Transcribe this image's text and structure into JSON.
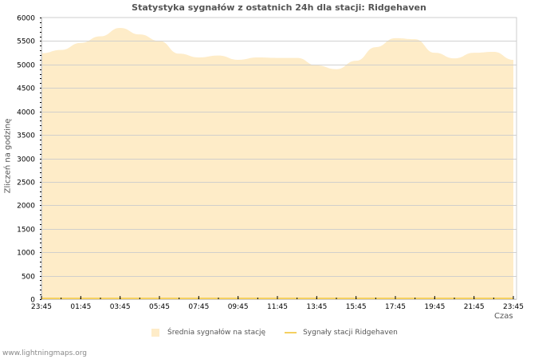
{
  "header": {
    "title": "Statystyka sygnałów z ostatnich 24h dla stacji: Ridgehaven"
  },
  "axes": {
    "ylabel": "Zliczeń na godzinę",
    "xlabel": "Czas"
  },
  "legend": {
    "area_label": "Średnia sygnałów na stację",
    "line_label": "Sygnały stacji Ridgehaven"
  },
  "footer": {
    "text": "www.lightningmaps.org"
  },
  "colors": {
    "area": "#feecc8",
    "line": "#f5d060",
    "grid": "#cccccc"
  },
  "chart_data": {
    "type": "area",
    "title": "Statystyka sygnałów z ostatnich 24h dla stacji: Ridgehaven",
    "xlabel": "Czas",
    "ylabel": "Zliczeń na godzinę",
    "ylim": [
      0,
      6000
    ],
    "yticks": [
      0,
      500,
      1000,
      1500,
      2000,
      2500,
      3000,
      3500,
      4000,
      4500,
      5000,
      5500,
      6000
    ],
    "xticks": [
      "23:45",
      "01:45",
      "03:45",
      "05:45",
      "07:45",
      "09:45",
      "11:45",
      "13:45",
      "15:45",
      "17:45",
      "19:45",
      "21:45",
      "23:45"
    ],
    "grid": true,
    "legend_position": "bottom",
    "x": [
      "23:45",
      "00:45",
      "01:45",
      "02:45",
      "03:45",
      "04:45",
      "05:45",
      "06:45",
      "07:45",
      "08:45",
      "09:45",
      "10:45",
      "11:45",
      "12:45",
      "13:45",
      "14:45",
      "15:45",
      "16:45",
      "17:45",
      "18:45",
      "19:45",
      "20:45",
      "21:45",
      "22:45",
      "23:45"
    ],
    "series": [
      {
        "name": "Średnia sygnałów na stację",
        "values": [
          5240,
          5310,
          5460,
          5600,
          5780,
          5640,
          5500,
          5230,
          5150,
          5190,
          5100,
          5150,
          5140,
          5140,
          4980,
          4900,
          5080,
          5370,
          5560,
          5540,
          5250,
          5130,
          5250,
          5270,
          5100
        ]
      },
      {
        "name": "Sygnały stacji Ridgehaven",
        "values": [
          0,
          0,
          0,
          0,
          0,
          0,
          0,
          0,
          0,
          0,
          0,
          0,
          0,
          0,
          0,
          0,
          0,
          0,
          0,
          0,
          0,
          0,
          0,
          0,
          0
        ]
      }
    ]
  }
}
